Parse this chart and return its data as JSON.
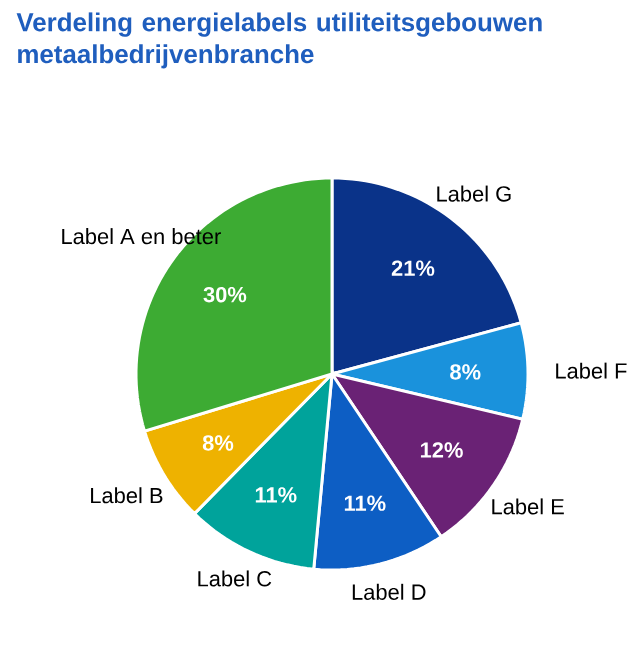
{
  "chart_data": {
    "type": "pie",
    "title": "Verdeling energielabels utiliteitsgebouwen metaalbedrijvenbranche",
    "categories": [
      "Label G",
      "Label F",
      "Label E",
      "Label D",
      "Label C",
      "Label B",
      "Label A en beter"
    ],
    "values": [
      21,
      8,
      12,
      11,
      11,
      8,
      30
    ],
    "value_labels": [
      "21%",
      "8%",
      "12%",
      "11%",
      "11%",
      "8%",
      "30%"
    ],
    "colors": [
      "#0a3389",
      "#1a92dc",
      "#6a2275",
      "#0d5ec4",
      "#00a39b",
      "#eeb200",
      "#3dab33"
    ]
  }
}
